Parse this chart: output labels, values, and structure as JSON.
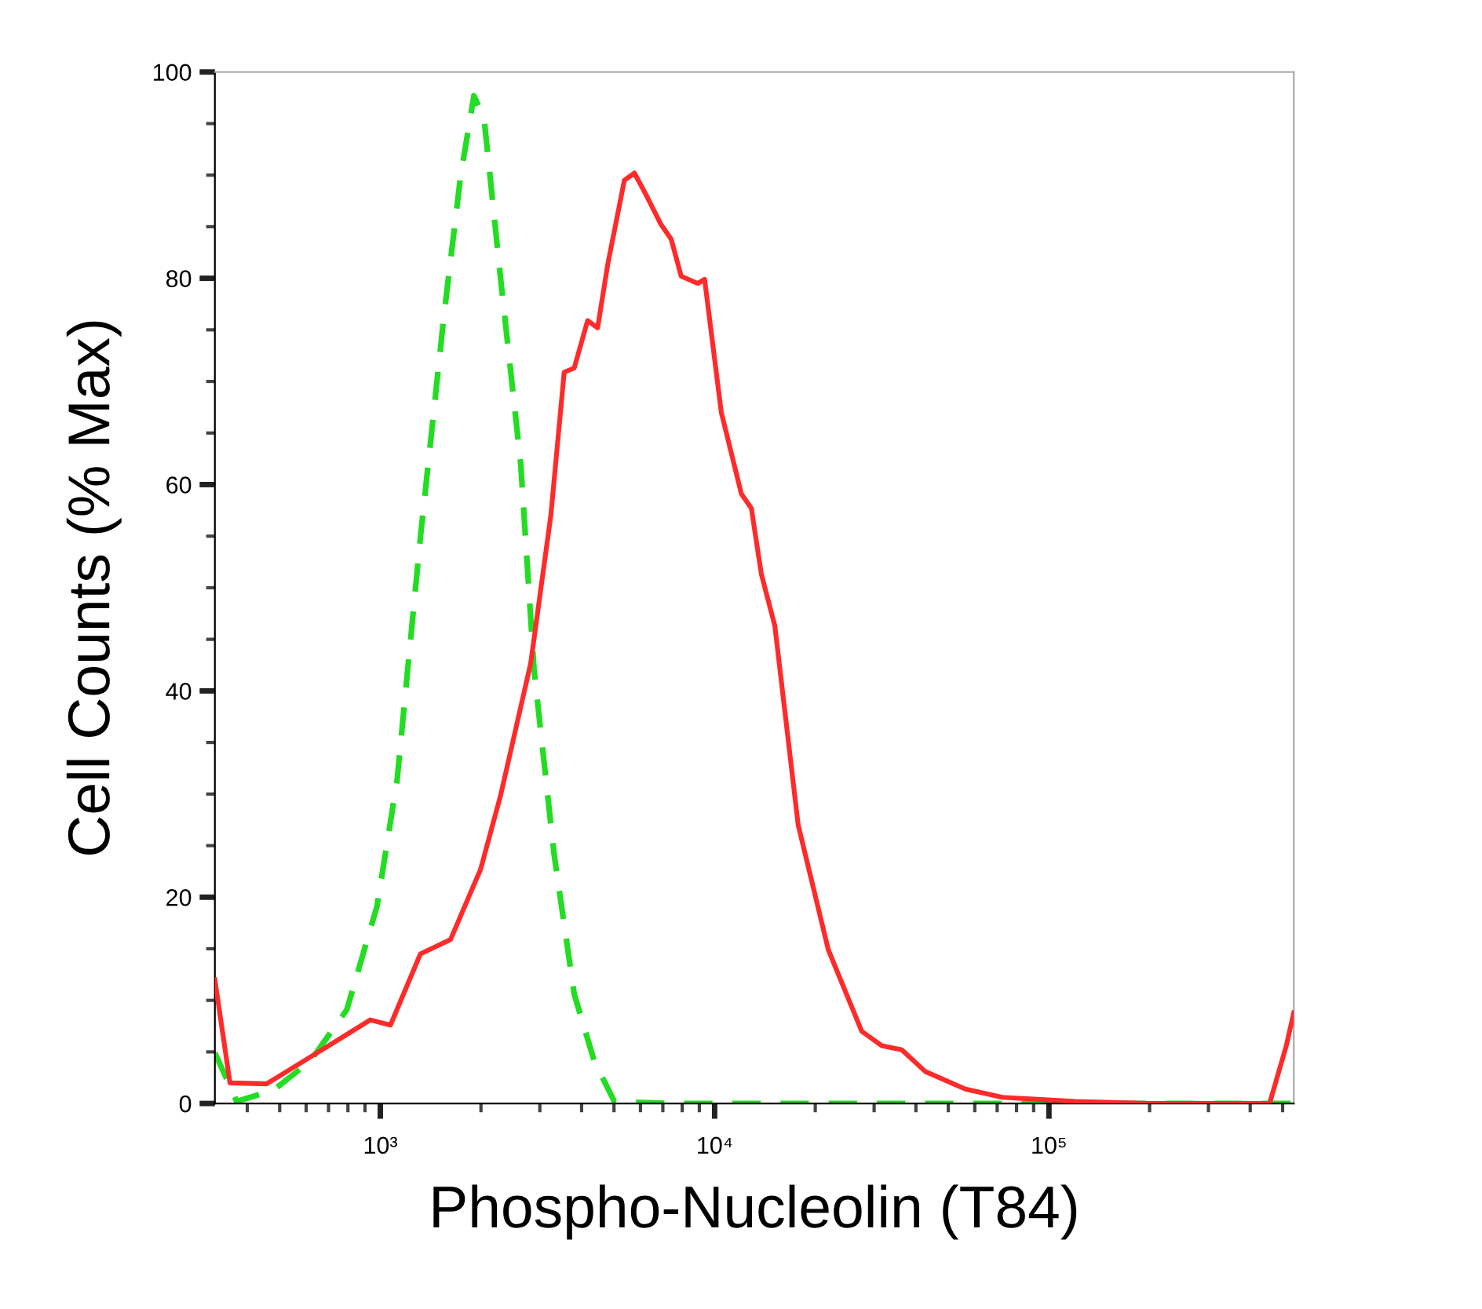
{
  "chart_data": {
    "type": "line",
    "xlabel": "Phospho-Nucleolin (T84)",
    "ylabel": "Cell Counts (% Max)",
    "log": "x",
    "xlim": [
      320,
      540000
    ],
    "xticks": [
      {
        "value": 1000,
        "label": "10³"
      },
      {
        "value": 10000,
        "label": "10⁴"
      },
      {
        "value": 100000,
        "label": "10⁵"
      }
    ],
    "ylim": [
      0,
      100
    ],
    "yticks": [
      0,
      20,
      40,
      60,
      80,
      100
    ],
    "grid": false,
    "marker": "none",
    "series": [
      {
        "color": "#ff2a2a",
        "line_style": "solid",
        "x": [
          320,
          355,
          457,
          589,
          759,
          933,
          1072,
          1318,
          1622,
          1995,
          2291,
          2818,
          3236,
          3548,
          3802,
          4169,
          4467,
          4786,
          5370,
          5754,
          6166,
          6918,
          7413,
          7943,
          8913,
          9333,
          10470,
          12020,
          12880,
          13800,
          15140,
          17780,
          21880,
          27540,
          31620,
          36310,
          42660,
          56230,
          72440,
          120200,
          199500,
          457100,
          512900,
          540000
        ],
        "values": [
          12,
          2,
          1.9,
          4.1,
          6.3,
          8.1,
          7.6,
          14.5,
          15.9,
          22.7,
          29.9,
          42.7,
          57,
          70.9,
          71.3,
          75.9,
          75.2,
          81.3,
          89.5,
          90.2,
          88.4,
          85.2,
          83.8,
          80.2,
          79.5,
          79.9,
          67,
          59.1,
          57.7,
          51.3,
          46.3,
          27,
          14.9,
          7,
          5.6,
          5.2,
          3.1,
          1.4,
          0.6,
          0.2,
          0,
          0,
          5.6,
          8.8
        ]
      },
      {
        "color": "#22dd22",
        "line_style": "dashed",
        "x": [
          320,
          372,
          479,
          617,
          794,
          977,
          1122,
          1318,
          1549,
          1738,
          1905,
          2042,
          2291,
          2630,
          2884,
          3311,
          3802,
          4365,
          5012,
          7413,
          540000
        ],
        "values": [
          4.9,
          0.2,
          1.3,
          4.1,
          9.1,
          19.1,
          31.3,
          54.9,
          76.3,
          89.9,
          97.7,
          95.6,
          79.9,
          62,
          42,
          24.1,
          10.6,
          4.1,
          0.2,
          0,
          0
        ]
      }
    ]
  }
}
